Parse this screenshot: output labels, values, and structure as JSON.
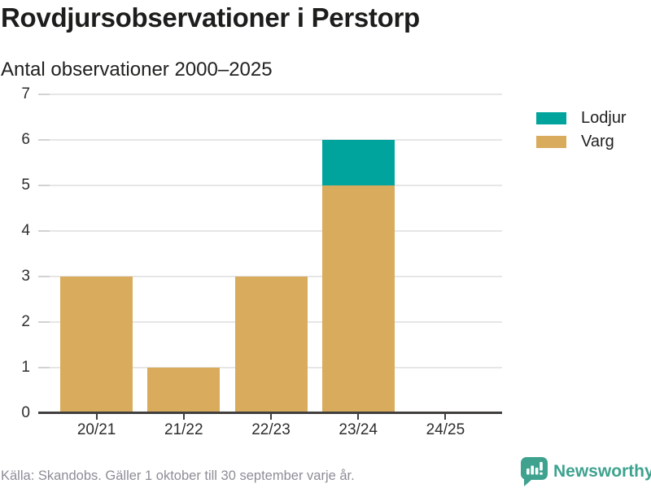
{
  "header": {
    "title": "Rovdjursobservationer i Perstorp",
    "subtitle": "Antal observationer 2000–2025"
  },
  "chart_data": {
    "type": "bar",
    "stacked": true,
    "title": "Rovdjursobservationer i Perstorp",
    "subtitle": "Antal observationer 2000–2025",
    "categories": [
      "20/21",
      "21/22",
      "22/23",
      "23/24",
      "24/25"
    ],
    "series": [
      {
        "name": "Lodjur",
        "color": "#00a49c",
        "values": [
          0,
          0,
          0,
          1,
          0
        ]
      },
      {
        "name": "Varg",
        "color": "#d9ab5c",
        "values": [
          3,
          1,
          3,
          5,
          0
        ]
      }
    ],
    "stack_totals": [
      3,
      1,
      3,
      6,
      0
    ],
    "xlabel": "",
    "ylabel": "",
    "ylim": [
      0,
      7
    ],
    "yticks": [
      0,
      1,
      2,
      3,
      4,
      5,
      6,
      7
    ],
    "grid": true,
    "legend_position": "top-right"
  },
  "footer": {
    "source_note": "Källa: Skandobs. Gäller 1 oktober till 30 september varje år.",
    "brand": {
      "wordmark": "Newsworthy",
      "icon": "newsworthy-speech-bubble-bar-chart-icon"
    }
  },
  "colors": {
    "lodjur": "#00a49c",
    "varg": "#d9ab5c",
    "brand_teal": "#3ea28f",
    "axis_line": "#403f3d",
    "gridline": "#e6e6e6",
    "y_tick_stub": "#d2d2d2",
    "text_dark": "#1d1d1b",
    "text_muted": "#8d8d96"
  }
}
